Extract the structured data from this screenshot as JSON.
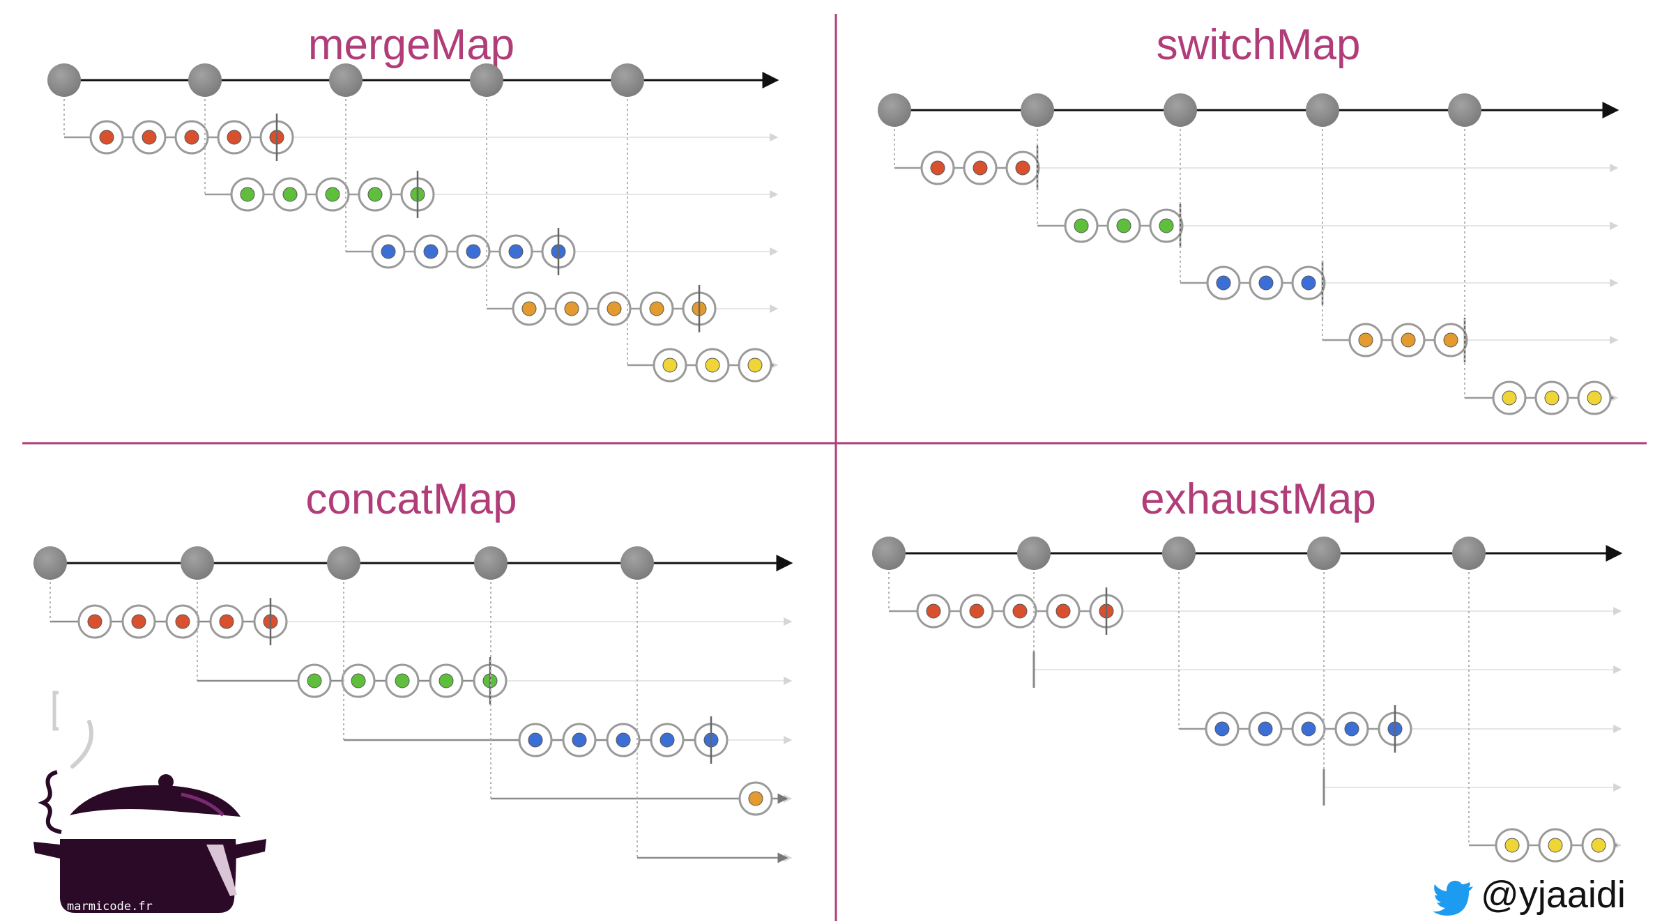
{
  "panels": [
    {
      "title": "mergeMap",
      "outer_emissions": 5,
      "inner": [
        {
          "color": "red",
          "emitted": 5,
          "completed": true
        },
        {
          "color": "green",
          "emitted": 5,
          "completed": true
        },
        {
          "color": "blue",
          "emitted": 5,
          "completed": true
        },
        {
          "color": "orange",
          "emitted": 5,
          "completed": true
        },
        {
          "color": "yellow",
          "emitted": 3,
          "completed": false
        }
      ]
    },
    {
      "title": "switchMap",
      "outer_emissions": 5,
      "inner": [
        {
          "color": "red",
          "emitted": 3,
          "cancelled": true
        },
        {
          "color": "green",
          "emitted": 3,
          "cancelled": true
        },
        {
          "color": "blue",
          "emitted": 3,
          "cancelled": true
        },
        {
          "color": "orange",
          "emitted": 3,
          "cancelled": true
        },
        {
          "color": "yellow",
          "emitted": 3,
          "cancelled": false
        }
      ]
    },
    {
      "title": "concatMap",
      "outer_emissions": 5,
      "inner": [
        {
          "color": "red",
          "emitted": 5,
          "completed": true
        },
        {
          "color": "green",
          "emitted": 5,
          "completed": true
        },
        {
          "color": "blue",
          "emitted": 5,
          "completed": true
        },
        {
          "color": "orange",
          "emitted": 1,
          "completed": false
        },
        {
          "color": "none",
          "emitted": 0,
          "completed": false
        }
      ]
    },
    {
      "title": "exhaustMap",
      "outer_emissions": 5,
      "inner": [
        {
          "color": "red",
          "emitted": 5,
          "completed": true
        },
        {
          "color": "none",
          "emitted": 0,
          "ignored": true
        },
        {
          "color": "blue",
          "emitted": 5,
          "completed": true
        },
        {
          "color": "none",
          "emitted": 0,
          "ignored": true
        },
        {
          "color": "yellow",
          "emitted": 3,
          "completed": false
        }
      ]
    }
  ],
  "colors": {
    "title": "#b03c78",
    "divider": "#b03c78",
    "outer_circle": "#8a8a8a",
    "red": "#d9502e",
    "green": "#5fbf3c",
    "blue": "#3c6fd6",
    "orange": "#e39a2e",
    "yellow": "#f0d536",
    "twitter": "#1d9bf0",
    "pot": "#2a0a26"
  },
  "branding": {
    "site": "marmicode.fr",
    "twitter_handle": "@yjaaidi",
    "logo_icon": "cooking-pot-icon",
    "social_icon": "twitter-bird-icon"
  }
}
